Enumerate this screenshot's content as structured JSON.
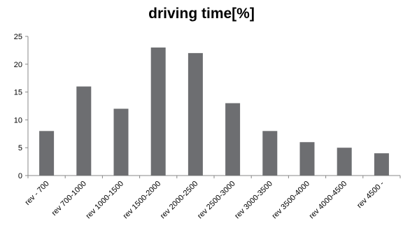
{
  "chart_data": {
    "type": "bar",
    "title": "driving time[%]",
    "xlabel": "",
    "ylabel": "",
    "categories": [
      "rev - 700",
      "rev 700-1000",
      "rev 1000-1500",
      "rev 1500-2000",
      "rev 2000-2500",
      "rev 2500-3000",
      "rev 3000-3500",
      "rev 3500-4000",
      "rev 4000-4500",
      "rev 4500 -"
    ],
    "values": [
      8,
      16,
      12,
      23,
      22,
      13,
      8,
      6,
      5,
      4
    ],
    "ylim": [
      0,
      25
    ],
    "yticks": [
      0,
      5,
      10,
      15,
      20,
      25
    ],
    "grid": false,
    "legend": "none",
    "colors": {
      "bar": "#6d6e71",
      "axis": "#888888"
    }
  }
}
